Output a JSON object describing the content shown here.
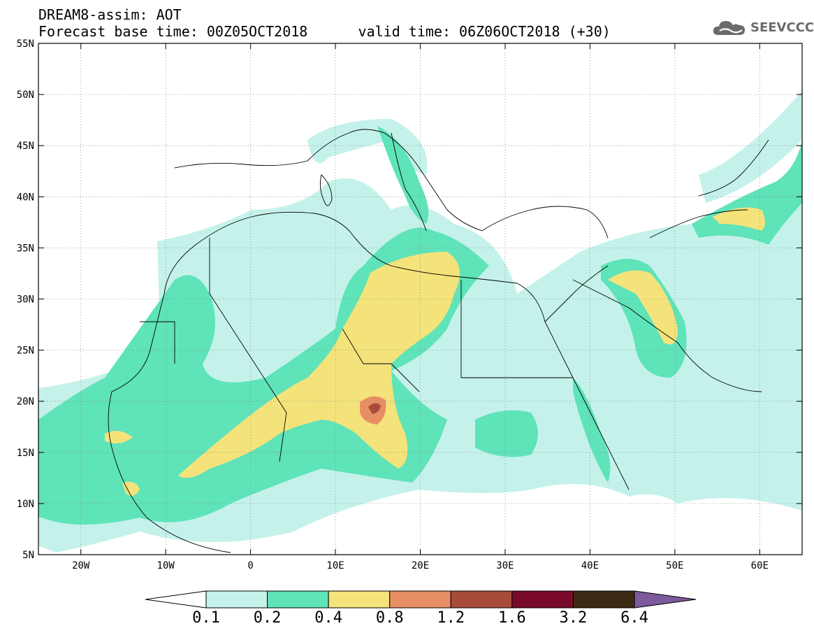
{
  "title": {
    "line1": "DREAM8-assim: AOT",
    "line2": "Forecast base time: 00Z05OCT2018      valid time: 06Z06OCT2018 (+30)"
  },
  "logo": {
    "text": "SEEVCCC",
    "icon": "cloud-icon",
    "color": "#6b6b6b"
  },
  "map": {
    "lon_range": [
      -25,
      65
    ],
    "lat_range": [
      5,
      55
    ],
    "x_ticks": [
      {
        "lon": -20,
        "label": "20W"
      },
      {
        "lon": -10,
        "label": "10W"
      },
      {
        "lon": 0,
        "label": "0"
      },
      {
        "lon": 10,
        "label": "10E"
      },
      {
        "lon": 20,
        "label": "20E"
      },
      {
        "lon": 30,
        "label": "30E"
      },
      {
        "lon": 40,
        "label": "40E"
      },
      {
        "lon": 50,
        "label": "50E"
      },
      {
        "lon": 60,
        "label": "60E"
      }
    ],
    "y_ticks": [
      {
        "lat": 55,
        "label": "55N"
      },
      {
        "lat": 50,
        "label": "50N"
      },
      {
        "lat": 45,
        "label": "45N"
      },
      {
        "lat": 40,
        "label": "40N"
      },
      {
        "lat": 35,
        "label": "35N"
      },
      {
        "lat": 30,
        "label": "30N"
      },
      {
        "lat": 25,
        "label": "25N"
      },
      {
        "lat": 20,
        "label": "20N"
      },
      {
        "lat": 15,
        "label": "15N"
      },
      {
        "lat": 10,
        "label": "10N"
      },
      {
        "lat": 5,
        "label": "5N"
      }
    ],
    "grid": true
  },
  "colorbar": {
    "levels": [
      "0.1",
      "0.2",
      "0.4",
      "0.8",
      "1.2",
      "1.6",
      "3.2",
      "6.4"
    ],
    "colors": [
      "#ffffff",
      "#c4f2ea",
      "#5fe3b9",
      "#f4e37a",
      "#e88e64",
      "#a84b3b",
      "#7a0a2a",
      "#3d2a14",
      "#7c5a9c"
    ]
  }
}
